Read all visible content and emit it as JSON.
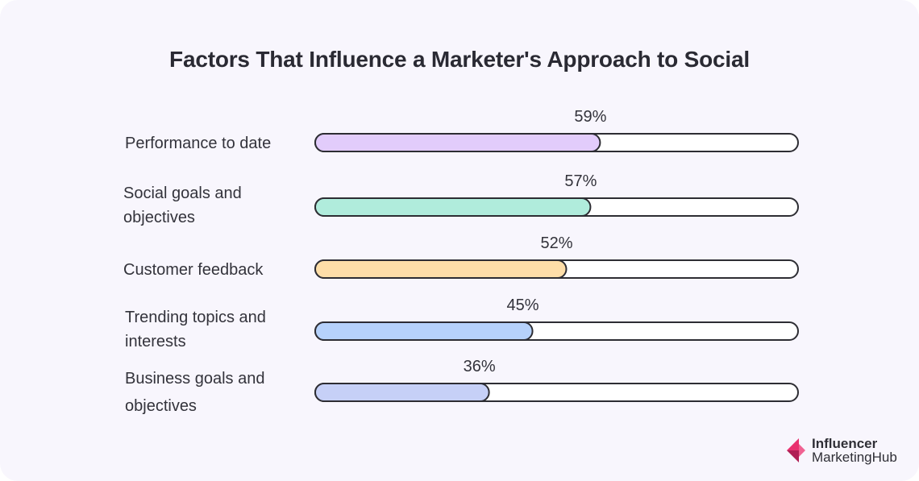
{
  "chart_data": {
    "type": "bar",
    "orientation": "horizontal",
    "title": "Factors That Influence a Marketer's Approach to Social",
    "value_suffix": "%",
    "xlim": [
      0,
      100
    ],
    "grid": false,
    "categories": [
      [
        "Performance to date"
      ],
      [
        "Social goals and",
        "objectives"
      ],
      [
        "Customer feedback"
      ],
      [
        "Trending topics and",
        "interests"
      ],
      [
        "Business goals and",
        "objectives"
      ]
    ],
    "values": [
      59,
      57,
      52,
      45,
      36
    ],
    "colors": [
      "#e2ccfb",
      "#b0ecdc",
      "#fedea8",
      "#b6d2fb",
      "#c6d0f7"
    ]
  },
  "logo": {
    "line1": "Influencer",
    "line2": "MarketingHub",
    "colors": [
      "#e8316f",
      "#b01f55"
    ]
  },
  "colors": {
    "background": "#f8f6fd",
    "track": "#ffffff",
    "outline": "#2d2d33",
    "text": "#33333b"
  }
}
